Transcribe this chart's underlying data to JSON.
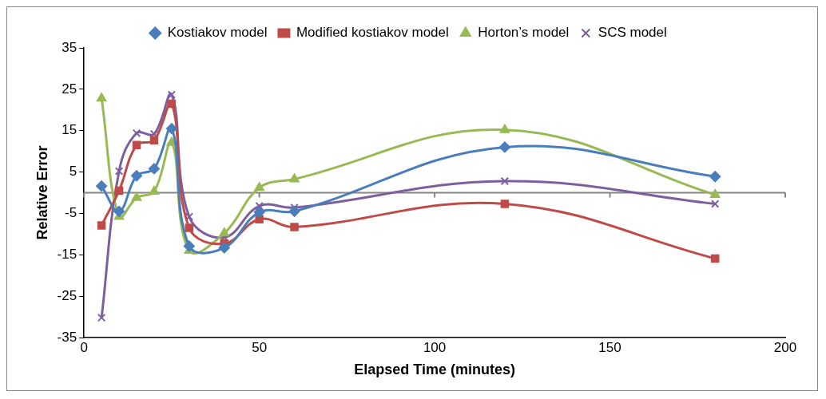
{
  "chart_data": {
    "type": "line",
    "xlabel": "Elapsed Time (minutes)",
    "ylabel": "Relative Error",
    "x": [
      5,
      10,
      15,
      20,
      25,
      30,
      40,
      50,
      60,
      120,
      180
    ],
    "series": [
      {
        "name": "Kostiakov model",
        "color": "#4a7ebb",
        "marker": "diamond",
        "values": [
          1.6,
          -4.5,
          4.1,
          5.8,
          15.5,
          -12.9,
          -13.3,
          -4.7,
          -4.5,
          11,
          3.9
        ]
      },
      {
        "name": "Modified kostiakov model",
        "color": "#be4b48",
        "marker": "square",
        "values": [
          -7.9,
          0.5,
          11.5,
          12.7,
          21.5,
          -8.5,
          -12.3,
          -6.4,
          -8.3,
          -2.7,
          -15.9
        ]
      },
      {
        "name": "Horton’s model",
        "color": "#98b954",
        "marker": "triangle",
        "values": [
          22.8,
          -5.8,
          -1.2,
          0.3,
          12.1,
          -14,
          -9.8,
          1.2,
          3.3,
          15.2,
          -0.5
        ]
      },
      {
        "name": "SCS model",
        "color": "#7d5fa0",
        "marker": "cross",
        "values": [
          -30.2,
          5.2,
          14.4,
          14.2,
          23.7,
          -5.8,
          -10.8,
          -3.2,
          -3.6,
          2.8,
          -2.7
        ]
      }
    ],
    "xlim": [
      0,
      200
    ],
    "xticks": [
      0,
      50,
      100,
      150,
      200
    ],
    "ylim": [
      -35,
      35
    ],
    "yticks": [
      -35,
      -25,
      -15,
      -5,
      5,
      15,
      25,
      35
    ],
    "ref_lines": [
      {
        "axis": "y",
        "value": 0,
        "color": "#868686"
      }
    ],
    "legend": "top",
    "grid": false
  }
}
